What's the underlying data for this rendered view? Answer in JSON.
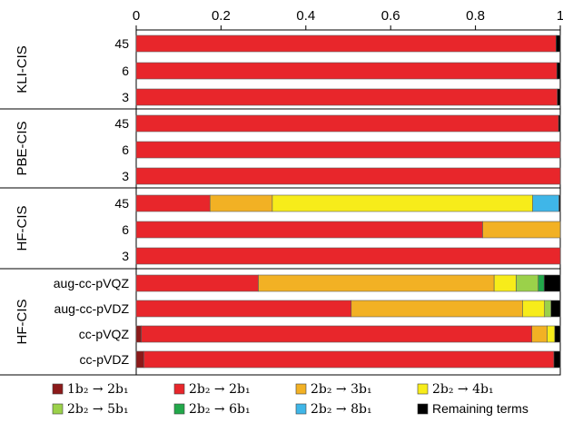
{
  "chart_data": {
    "type": "bar",
    "orientation": "horizontal",
    "stacked": true,
    "xlim": [
      0,
      1
    ],
    "x_ticks": [
      "0",
      "0.2",
      "0.4",
      "0.6",
      "0.8",
      "1"
    ],
    "x_tick_values": [
      0,
      0.2,
      0.4,
      0.6,
      0.8,
      1
    ],
    "grid": false,
    "legend_position": "bottom",
    "colors": {
      "1b2_2b1": "#8c1a1a",
      "2b2_2b1": "#e8262b",
      "2b2_3b1": "#f2b124",
      "2b2_4b1": "#f7ec1a",
      "2b2_5b1": "#9bd14a",
      "2b2_6b1": "#22a84a",
      "2b2_8b1": "#3fb6e8",
      "remaining": "#000000"
    },
    "legend": [
      {
        "key": "1b2_2b1",
        "label": "1b₂ → 2b₁"
      },
      {
        "key": "2b2_2b1",
        "label": "2b₂ → 2b₁"
      },
      {
        "key": "2b2_3b1",
        "label": "2b₂ → 3b₁"
      },
      {
        "key": "2b2_4b1",
        "label": "2b₂ → 4b₁"
      },
      {
        "key": "2b2_5b1",
        "label": "2b₂ → 5b₁"
      },
      {
        "key": "2b2_6b1",
        "label": "2b₂ → 6b₁"
      },
      {
        "key": "2b2_8b1",
        "label": "2b₂ → 8b₁"
      },
      {
        "key": "remaining",
        "label": "Remaining terms"
      }
    ],
    "groups": [
      {
        "label": "KLI-CIS",
        "rows": [
          {
            "label": "45",
            "segments": [
              [
                "2b2_2b1",
                0.99
              ],
              [
                "remaining",
                0.01
              ]
            ]
          },
          {
            "label": "6",
            "segments": [
              [
                "2b2_2b1",
                0.992
              ],
              [
                "remaining",
                0.008
              ]
            ]
          },
          {
            "label": "3",
            "segments": [
              [
                "2b2_2b1",
                0.993
              ],
              [
                "remaining",
                0.007
              ]
            ]
          }
        ]
      },
      {
        "label": "PBE-CIS",
        "rows": [
          {
            "label": "45",
            "segments": [
              [
                "2b2_2b1",
                0.996
              ],
              [
                "remaining",
                0.004
              ]
            ]
          },
          {
            "label": "6",
            "segments": [
              [
                "2b2_2b1",
                1.0
              ]
            ]
          },
          {
            "label": "3",
            "segments": [
              [
                "2b2_2b1",
                1.0
              ]
            ]
          }
        ]
      },
      {
        "label": "HF-CIS",
        "rows": [
          {
            "label": "45",
            "segments": [
              [
                "2b2_2b1",
                0.174
              ],
              [
                "2b2_3b1",
                0.147
              ],
              [
                "2b2_4b1",
                0.614
              ],
              [
                "2b2_8b1",
                0.062
              ],
              [
                "remaining",
                0.003
              ]
            ]
          },
          {
            "label": "6",
            "segments": [
              [
                "2b2_2b1",
                0.817
              ],
              [
                "2b2_3b1",
                0.183
              ]
            ]
          },
          {
            "label": "3",
            "segments": [
              [
                "2b2_2b1",
                1.0
              ]
            ]
          }
        ]
      },
      {
        "label": "HF-CIS",
        "rows": [
          {
            "label": "aug-cc-pVQZ",
            "segments": [
              [
                "2b2_2b1",
                0.288
              ],
              [
                "2b2_3b1",
                0.556
              ],
              [
                "2b2_4b1",
                0.052
              ],
              [
                "2b2_5b1",
                0.052
              ],
              [
                "2b2_6b1",
                0.014
              ],
              [
                "remaining",
                0.038
              ]
            ]
          },
          {
            "label": "aug-cc-pVDZ",
            "segments": [
              [
                "2b2_2b1",
                0.507
              ],
              [
                "2b2_3b1",
                0.404
              ],
              [
                "2b2_4b1",
                0.052
              ],
              [
                "2b2_5b1",
                0.015
              ],
              [
                "remaining",
                0.022
              ]
            ]
          },
          {
            "label": "cc-pVQZ",
            "segments": [
              [
                "1b2_2b1",
                0.012
              ],
              [
                "2b2_2b1",
                0.921
              ],
              [
                "2b2_3b1",
                0.036
              ],
              [
                "2b2_4b1",
                0.018
              ],
              [
                "remaining",
                0.013
              ]
            ]
          },
          {
            "label": "cc-pVDZ",
            "segments": [
              [
                "1b2_2b1",
                0.018
              ],
              [
                "2b2_2b1",
                0.967
              ],
              [
                "remaining",
                0.015
              ]
            ]
          }
        ]
      }
    ]
  }
}
